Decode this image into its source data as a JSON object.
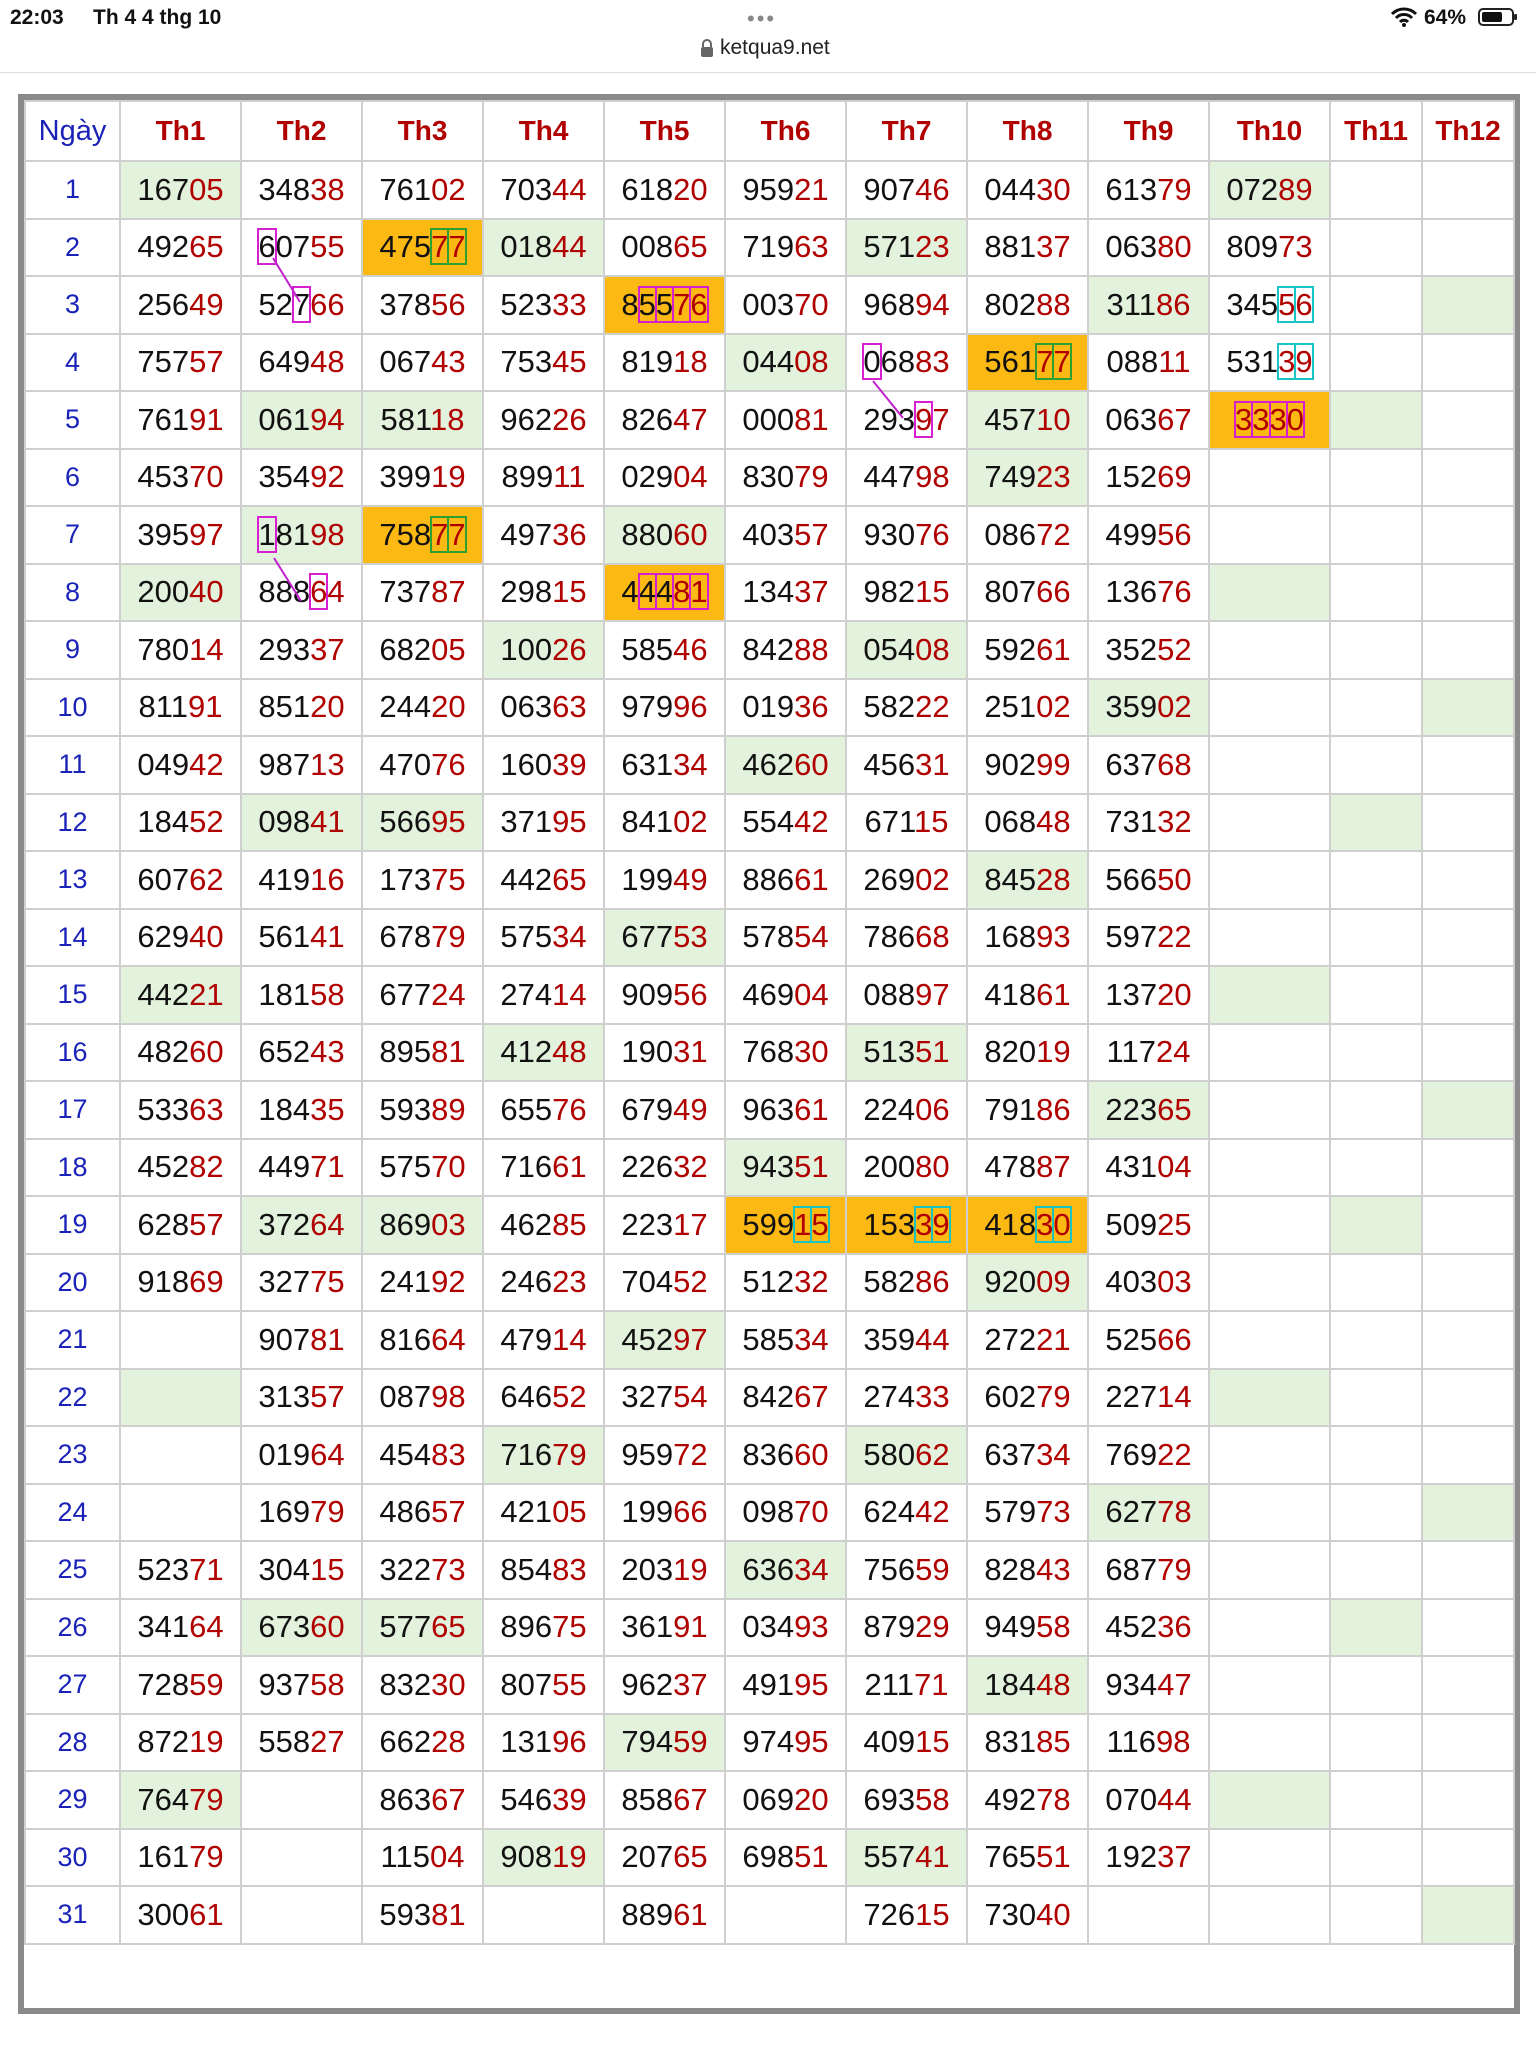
{
  "status": {
    "time": "22:03",
    "date": "Th 4 4 thg 10",
    "battery": "64%",
    "icons": [
      "wifi-icon",
      "battery-icon"
    ]
  },
  "url": {
    "host": "ketqua9.net",
    "icon": "lock-icon"
  },
  "colors": {
    "header_month": "#b00000",
    "day_blue": "#1a22b8",
    "green_cell": "#e2f2dd",
    "orange_cell": "#fdb913",
    "pink_box": "#d61fd1",
    "green_box": "#2ea033",
    "cyan_box": "#19c4c4"
  },
  "table": {
    "header": [
      "Ngày",
      "Th1",
      "Th2",
      "Th3",
      "Th4",
      "Th5",
      "Th6",
      "Th7",
      "Th8",
      "Th9",
      "Th10",
      "Th11",
      "Th12"
    ],
    "rows": [
      [
        "1",
        "16705",
        "34838",
        "76102",
        "70344",
        "61820",
        "95921",
        "90746",
        "04430",
        "61379",
        "07289",
        "",
        ""
      ],
      [
        "2",
        "49265",
        "60755",
        "47577",
        "01844",
        "00865",
        "71963",
        "57123",
        "88137",
        "06380",
        "80973",
        "",
        ""
      ],
      [
        "3",
        "25649",
        "52766",
        "37856",
        "52333",
        "85576",
        "00370",
        "96894",
        "80288",
        "31186",
        "34556",
        "",
        ""
      ],
      [
        "4",
        "75757",
        "64948",
        "06743",
        "75345",
        "81918",
        "04408",
        "06883",
        "56177",
        "08811",
        "53139",
        "",
        ""
      ],
      [
        "5",
        "76191",
        "06194",
        "58118",
        "96226",
        "82647",
        "00081",
        "29397",
        "45710",
        "06367",
        "3330",
        "",
        ""
      ],
      [
        "6",
        "45370",
        "35492",
        "39919",
        "89911",
        "02904",
        "83079",
        "44798",
        "74923",
        "15269",
        "",
        "",
        ""
      ],
      [
        "7",
        "39597",
        "18198",
        "75877",
        "49736",
        "88060",
        "40357",
        "93076",
        "08672",
        "49956",
        "",
        "",
        ""
      ],
      [
        "8",
        "20040",
        "88864",
        "73787",
        "29815",
        "44481",
        "13437",
        "98215",
        "80766",
        "13676",
        "",
        "",
        ""
      ],
      [
        "9",
        "78014",
        "29337",
        "68205",
        "10026",
        "58546",
        "84288",
        "05408",
        "59261",
        "35252",
        "",
        "",
        ""
      ],
      [
        "10",
        "81191",
        "85120",
        "24420",
        "06363",
        "97996",
        "01936",
        "58222",
        "25102",
        "35902",
        "",
        "",
        ""
      ],
      [
        "11",
        "04942",
        "98713",
        "47076",
        "16039",
        "63134",
        "46260",
        "45631",
        "90299",
        "63768",
        "",
        "",
        ""
      ],
      [
        "12",
        "18452",
        "09841",
        "56695",
        "37195",
        "84102",
        "55442",
        "67115",
        "06848",
        "73132",
        "",
        "",
        ""
      ],
      [
        "13",
        "60762",
        "41916",
        "17375",
        "44265",
        "19949",
        "88661",
        "26902",
        "84528",
        "56650",
        "",
        "",
        ""
      ],
      [
        "14",
        "62940",
        "56141",
        "67879",
        "57534",
        "67753",
        "57854",
        "78668",
        "16893",
        "59722",
        "",
        "",
        ""
      ],
      [
        "15",
        "44221",
        "18158",
        "67724",
        "27414",
        "90956",
        "46904",
        "08897",
        "41861",
        "13720",
        "",
        "",
        ""
      ],
      [
        "16",
        "48260",
        "65243",
        "89581",
        "41248",
        "19031",
        "76830",
        "51351",
        "82019",
        "11724",
        "",
        "",
        ""
      ],
      [
        "17",
        "53363",
        "18435",
        "59389",
        "65576",
        "67949",
        "96361",
        "22406",
        "79186",
        "22365",
        "",
        "",
        ""
      ],
      [
        "18",
        "45282",
        "44971",
        "57570",
        "71661",
        "22632",
        "94351",
        "20080",
        "47887",
        "43104",
        "",
        "",
        ""
      ],
      [
        "19",
        "62857",
        "37264",
        "86903",
        "46285",
        "22317",
        "59915",
        "15339",
        "41830",
        "50925",
        "",
        "",
        ""
      ],
      [
        "20",
        "91869",
        "32775",
        "24192",
        "24623",
        "70452",
        "51232",
        "58286",
        "92009",
        "40303",
        "",
        "",
        ""
      ],
      [
        "21",
        "",
        "90781",
        "81664",
        "47914",
        "45297",
        "58534",
        "35944",
        "27221",
        "52566",
        "",
        "",
        ""
      ],
      [
        "22",
        "",
        "31357",
        "08798",
        "64652",
        "32754",
        "84267",
        "27433",
        "60279",
        "22714",
        "",
        "",
        ""
      ],
      [
        "23",
        "",
        "01964",
        "45483",
        "71679",
        "95972",
        "83660",
        "58062",
        "63734",
        "76922",
        "",
        "",
        ""
      ],
      [
        "24",
        "",
        "16979",
        "48657",
        "42105",
        "19966",
        "09870",
        "62442",
        "57973",
        "62778",
        "",
        "",
        ""
      ],
      [
        "25",
        "52371",
        "30415",
        "32273",
        "85483",
        "20319",
        "63634",
        "75659",
        "82843",
        "68779",
        "",
        "",
        ""
      ],
      [
        "26",
        "34164",
        "67360",
        "57765",
        "89675",
        "36191",
        "03493",
        "87929",
        "94958",
        "45236",
        "",
        "",
        ""
      ],
      [
        "27",
        "72859",
        "93758",
        "83230",
        "80755",
        "96237",
        "49195",
        "21171",
        "18448",
        "93447",
        "",
        "",
        ""
      ],
      [
        "28",
        "87219",
        "55827",
        "66228",
        "13196",
        "79459",
        "97495",
        "40915",
        "83185",
        "11698",
        "",
        "",
        ""
      ],
      [
        "29",
        "76479",
        "",
        "86367",
        "54639",
        "85867",
        "06920",
        "69358",
        "49278",
        "07044",
        "",
        "",
        ""
      ],
      [
        "30",
        "16179",
        "",
        "11504",
        "90819",
        "20765",
        "69851",
        "55741",
        "76551",
        "19237",
        "",
        "",
        ""
      ],
      [
        "31",
        "30061",
        "",
        "59381",
        "",
        "88961",
        "",
        "72615",
        "73040",
        "",
        "",
        "",
        ""
      ]
    ],
    "green": [
      [
        0,
        1
      ],
      [
        0,
        10
      ],
      [
        1,
        3
      ],
      [
        1,
        4
      ],
      [
        1,
        7
      ],
      [
        2,
        9
      ],
      [
        2,
        12
      ],
      [
        3,
        6
      ],
      [
        4,
        2
      ],
      [
        4,
        3
      ],
      [
        4,
        8
      ],
      [
        4,
        11
      ],
      [
        5,
        8
      ],
      [
        6,
        2
      ],
      [
        6,
        5
      ],
      [
        7,
        1
      ],
      [
        7,
        10
      ],
      [
        8,
        4
      ],
      [
        8,
        7
      ],
      [
        9,
        9
      ],
      [
        9,
        12
      ],
      [
        10,
        6
      ],
      [
        11,
        2
      ],
      [
        11,
        3
      ],
      [
        11,
        11
      ],
      [
        12,
        8
      ],
      [
        13,
        5
      ],
      [
        14,
        1
      ],
      [
        14,
        10
      ],
      [
        15,
        4
      ],
      [
        15,
        7
      ],
      [
        16,
        9
      ],
      [
        16,
        12
      ],
      [
        17,
        6
      ],
      [
        18,
        2
      ],
      [
        18,
        3
      ],
      [
        18,
        11
      ],
      [
        19,
        8
      ],
      [
        20,
        5
      ],
      [
        21,
        1
      ],
      [
        21,
        10
      ],
      [
        22,
        4
      ],
      [
        22,
        7
      ],
      [
        23,
        9
      ],
      [
        23,
        12
      ],
      [
        24,
        6
      ],
      [
        25,
        2
      ],
      [
        25,
        3
      ],
      [
        25,
        11
      ],
      [
        26,
        8
      ],
      [
        27,
        5
      ],
      [
        28,
        1
      ],
      [
        28,
        10
      ],
      [
        29,
        4
      ],
      [
        29,
        7
      ],
      [
        30,
        12
      ]
    ],
    "orange": [
      [
        1,
        3
      ],
      [
        2,
        5
      ],
      [
        3,
        8
      ],
      [
        4,
        10
      ],
      [
        6,
        3
      ],
      [
        7,
        5
      ],
      [
        18,
        6
      ],
      [
        18,
        7
      ],
      [
        18,
        8
      ]
    ]
  }
}
